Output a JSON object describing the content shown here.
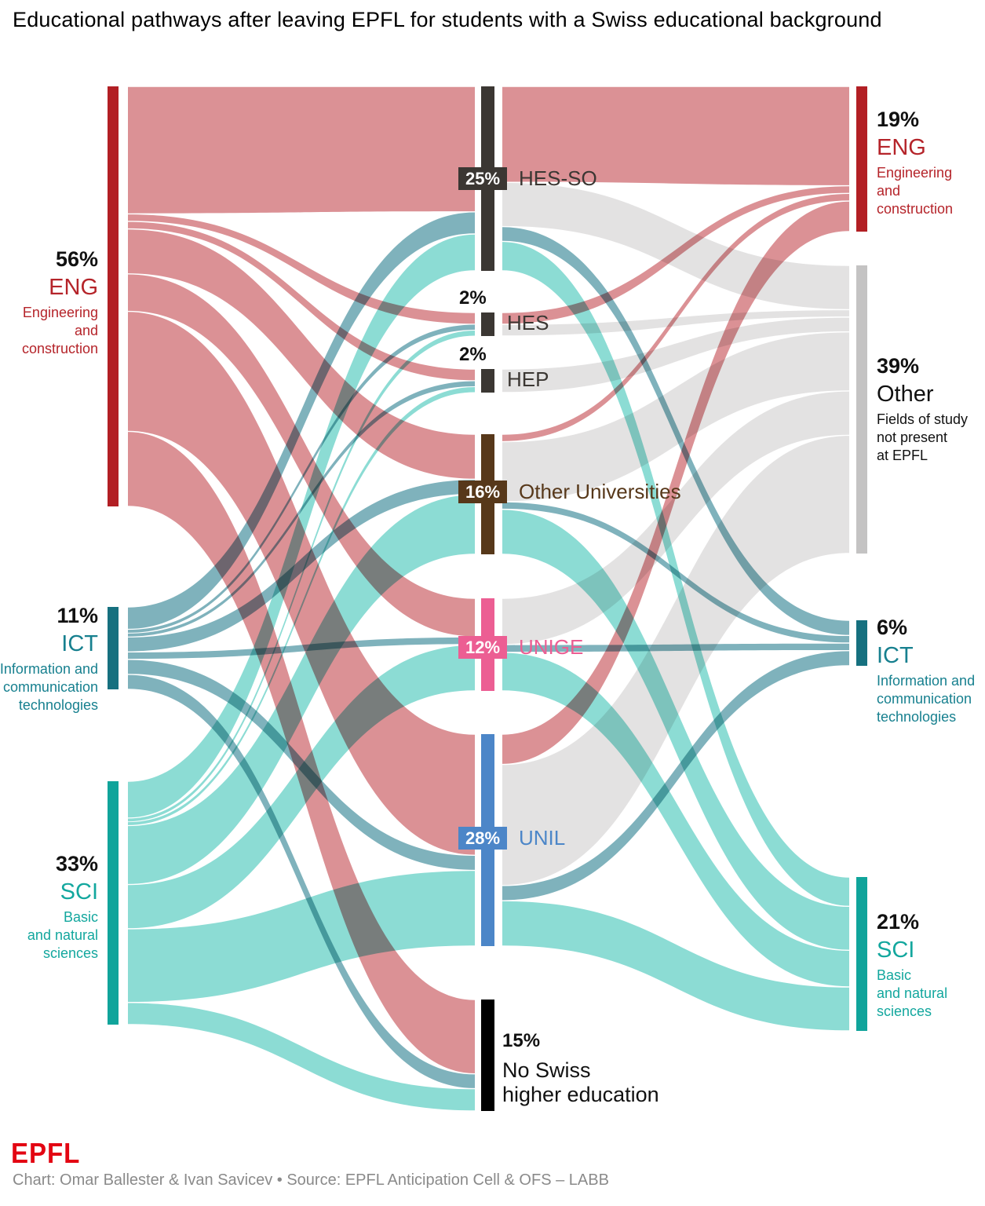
{
  "title": "Educational pathways after leaving EPFL for students with a Swiss educational background",
  "footer": {
    "logo": "EPFL",
    "credit": "Chart: Omar Ballester & Ivan Savicev • Source: EPFL Anticipation Cell & OFS – LABB"
  },
  "colors": {
    "eng_bar": "#b21f24",
    "eng_text": "#b5242a",
    "ict_bar": "#16707f",
    "ict_text": "#17808f",
    "sci_bar": "#10a49b",
    "sci_text": "#13a79e",
    "hesso_bar": "#3b3733",
    "hesso_text": "#3b3733",
    "othu_bar": "#57381a",
    "othu_text": "#57381a",
    "unige_bar": "#ec5e93",
    "unige_text": "#ec5e93",
    "unil_bar": "#4c86c8",
    "unil_text": "#4c86c8",
    "noswiss_bar": "#000000",
    "othergray_bar": "#c4c3c3",
    "other_text": "#111111",
    "flow_eng": "#db9195",
    "flow_ict": "#7fb2bc",
    "flow_sci": "#8cdcd4",
    "flow_other": "#e3e2e2",
    "title_text": "#000000",
    "credit_text": "#8a8a8a",
    "epfl_red": "#e30613"
  },
  "chart_data": {
    "type": "sankey",
    "left_nodes": [
      {
        "id": "ENG",
        "pct": "56%",
        "code": "ENG",
        "sublabel": "Engineering\nand\nconstruction"
      },
      {
        "id": "ICT",
        "pct": "11%",
        "code": "ICT",
        "sublabel": "Information and\ncommunication\ntechnologies"
      },
      {
        "id": "SCI",
        "pct": "33%",
        "code": "SCI",
        "sublabel": "Basic\nand natural\nsciences"
      }
    ],
    "middle_nodes": [
      {
        "id": "HESSO",
        "pct": "25%",
        "label": "HES-SO"
      },
      {
        "id": "HES",
        "pct": "2%",
        "label": "HES"
      },
      {
        "id": "HEP",
        "pct": "2%",
        "label": "HEP"
      },
      {
        "id": "OTHU",
        "pct": "16%",
        "label": "Other Universities"
      },
      {
        "id": "UNIGE",
        "pct": "12%",
        "label": "UNIGE"
      },
      {
        "id": "UNIL",
        "pct": "28%",
        "label": "UNIL"
      },
      {
        "id": "NOSWISS",
        "pct": "15%",
        "label": "No Swiss\nhigher education"
      }
    ],
    "right_nodes": [
      {
        "id": "ENG",
        "pct": "19%",
        "code": "ENG",
        "sublabel": "Engineering\nand\nconstruction"
      },
      {
        "id": "OTHER",
        "pct": "39%",
        "code": "Other",
        "sublabel": "Fields of study\nnot present\nat EPFL"
      },
      {
        "id": "ICT",
        "pct": "6%",
        "code": "ICT",
        "sublabel": "Information and\ncommunication\ntechnologies"
      },
      {
        "id": "SCI",
        "pct": "21%",
        "code": "SCI",
        "sublabel": "Basic\nand natural\nsciences"
      }
    ],
    "flows_left_middle": [
      {
        "from": "ENG",
        "to": "HESSO",
        "value": 17
      },
      {
        "from": "ENG",
        "to": "HES",
        "value": 1
      },
      {
        "from": "ENG",
        "to": "HEP",
        "value": 1
      },
      {
        "from": "ENG",
        "to": "OTHU",
        "value": 6
      },
      {
        "from": "ENG",
        "to": "UNIGE",
        "value": 5
      },
      {
        "from": "ENG",
        "to": "UNIL",
        "value": 16
      },
      {
        "from": "ENG",
        "to": "NOSWISS",
        "value": 10
      },
      {
        "from": "ICT",
        "to": "HESSO",
        "value": 3
      },
      {
        "from": "ICT",
        "to": "HES",
        "value": 0.5
      },
      {
        "from": "ICT",
        "to": "HEP",
        "value": 0.5
      },
      {
        "from": "ICT",
        "to": "OTHU",
        "value": 2
      },
      {
        "from": "ICT",
        "to": "UNIGE",
        "value": 1
      },
      {
        "from": "ICT",
        "to": "UNIL",
        "value": 2
      },
      {
        "from": "ICT",
        "to": "NOSWISS",
        "value": 2
      },
      {
        "from": "SCI",
        "to": "HESSO",
        "value": 5
      },
      {
        "from": "SCI",
        "to": "HES",
        "value": 0.5
      },
      {
        "from": "SCI",
        "to": "HEP",
        "value": 0.5
      },
      {
        "from": "SCI",
        "to": "OTHU",
        "value": 8
      },
      {
        "from": "SCI",
        "to": "UNIGE",
        "value": 6
      },
      {
        "from": "SCI",
        "to": "UNIL",
        "value": 10
      },
      {
        "from": "SCI",
        "to": "NOSWISS",
        "value": 3
      }
    ],
    "flows_middle_right": [
      {
        "from": "HESSO",
        "to": "ENG",
        "value": 13
      },
      {
        "from": "HESSO",
        "to": "OTHER",
        "value": 6
      },
      {
        "from": "HESSO",
        "to": "ICT",
        "value": 2
      },
      {
        "from": "HESSO",
        "to": "SCI",
        "value": 4
      },
      {
        "from": "HES",
        "to": "ENG",
        "value": 1
      },
      {
        "from": "HES",
        "to": "OTHER",
        "value": 1
      },
      {
        "from": "HEP",
        "to": "OTHER",
        "value": 2
      },
      {
        "from": "OTHU",
        "to": "ENG",
        "value": 1
      },
      {
        "from": "OTHU",
        "to": "OTHER",
        "value": 8
      },
      {
        "from": "OTHU",
        "to": "ICT",
        "value": 1
      },
      {
        "from": "OTHU",
        "to": "SCI",
        "value": 6
      },
      {
        "from": "UNIGE",
        "to": "OTHER",
        "value": 6
      },
      {
        "from": "UNIGE",
        "to": "ICT",
        "value": 1
      },
      {
        "from": "UNIGE",
        "to": "SCI",
        "value": 5
      },
      {
        "from": "UNIL",
        "to": "ENG",
        "value": 4
      },
      {
        "from": "UNIL",
        "to": "OTHER",
        "value": 16
      },
      {
        "from": "UNIL",
        "to": "ICT",
        "value": 2
      },
      {
        "from": "UNIL",
        "to": "SCI",
        "value": 6
      }
    ]
  }
}
